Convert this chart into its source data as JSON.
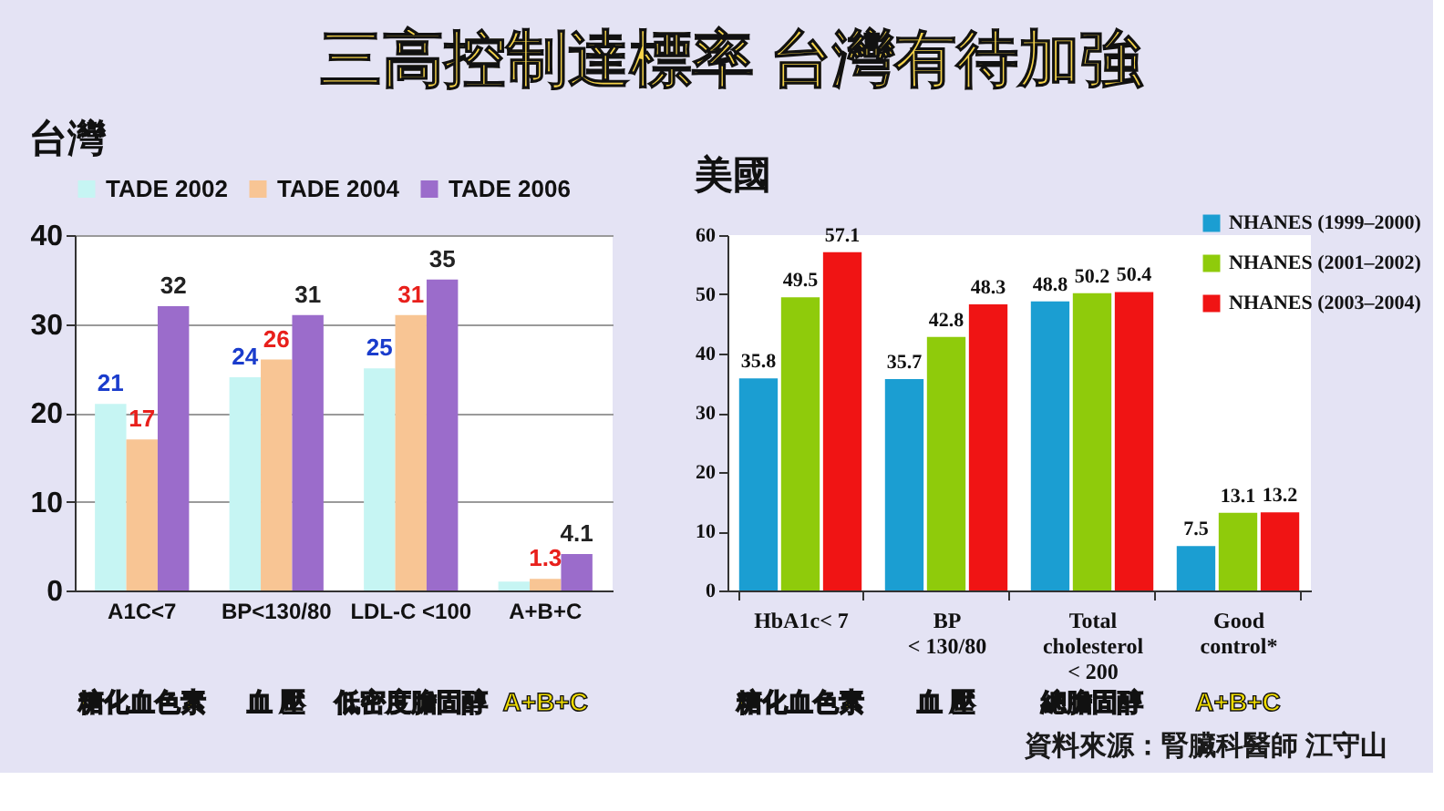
{
  "chart_data": [
    {
      "type": "other",
      "title": "三高控制達標率 台灣有待加強",
      "annotations": [
        "資料來源：腎臟科醫師 江守山"
      ]
    },
    {
      "type": "bar",
      "title": "台灣",
      "categories": [
        "A1C<7",
        "BP<130/80",
        "LDL-C <100",
        "A+B+C"
      ],
      "series": [
        {
          "name": "TADE 2002",
          "color": "#c6f5f3",
          "values": [
            21,
            24,
            25,
            1
          ],
          "value_labels": [
            "21",
            "24",
            "25",
            null
          ]
        },
        {
          "name": "TADE 2004",
          "color": "#f8c594",
          "values": [
            17,
            26,
            31,
            1.3
          ],
          "value_labels": [
            "17",
            "26",
            "31",
            "1.3"
          ]
        },
        {
          "name": "TADE 2006",
          "color": "#9b6ccb",
          "values": [
            32,
            31,
            35,
            4.1
          ],
          "value_labels": [
            "32",
            "31",
            "35",
            "4.1"
          ]
        }
      ],
      "ylim": [
        0,
        40
      ],
      "yticks": [
        0,
        10,
        20,
        30,
        40
      ],
      "grid": "y",
      "legend": "top",
      "annotations": [
        "糖化血色素",
        "血 壓",
        "低密度膽固醇",
        "A+B+C"
      ]
    },
    {
      "type": "bar",
      "title": "美國",
      "categories": [
        "HbA1c< 7",
        "BP\n< 130/80",
        "Total\ncholesterol\n< 200",
        "Good\ncontrol*"
      ],
      "series": [
        {
          "name": "NHANES (1999–2000)",
          "color": "#1b9ed2",
          "values": [
            35.8,
            35.7,
            48.8,
            7.5
          ]
        },
        {
          "name": "NHANES (2001–2002)",
          "color": "#8fcb0b",
          "values": [
            49.5,
            42.8,
            50.2,
            13.1
          ]
        },
        {
          "name": "NHANES (2003–2004)",
          "color": "#f01414",
          "values": [
            57.1,
            48.3,
            50.4,
            13.2
          ]
        }
      ],
      "ylim": [
        0,
        60
      ],
      "yticks": [
        0,
        10,
        20,
        30,
        40,
        50,
        60
      ],
      "legend": "top right",
      "data_labels": true,
      "annotations": [
        "糖化血色素",
        "血 壓",
        "總膽固醇",
        "A+B+C"
      ]
    }
  ]
}
